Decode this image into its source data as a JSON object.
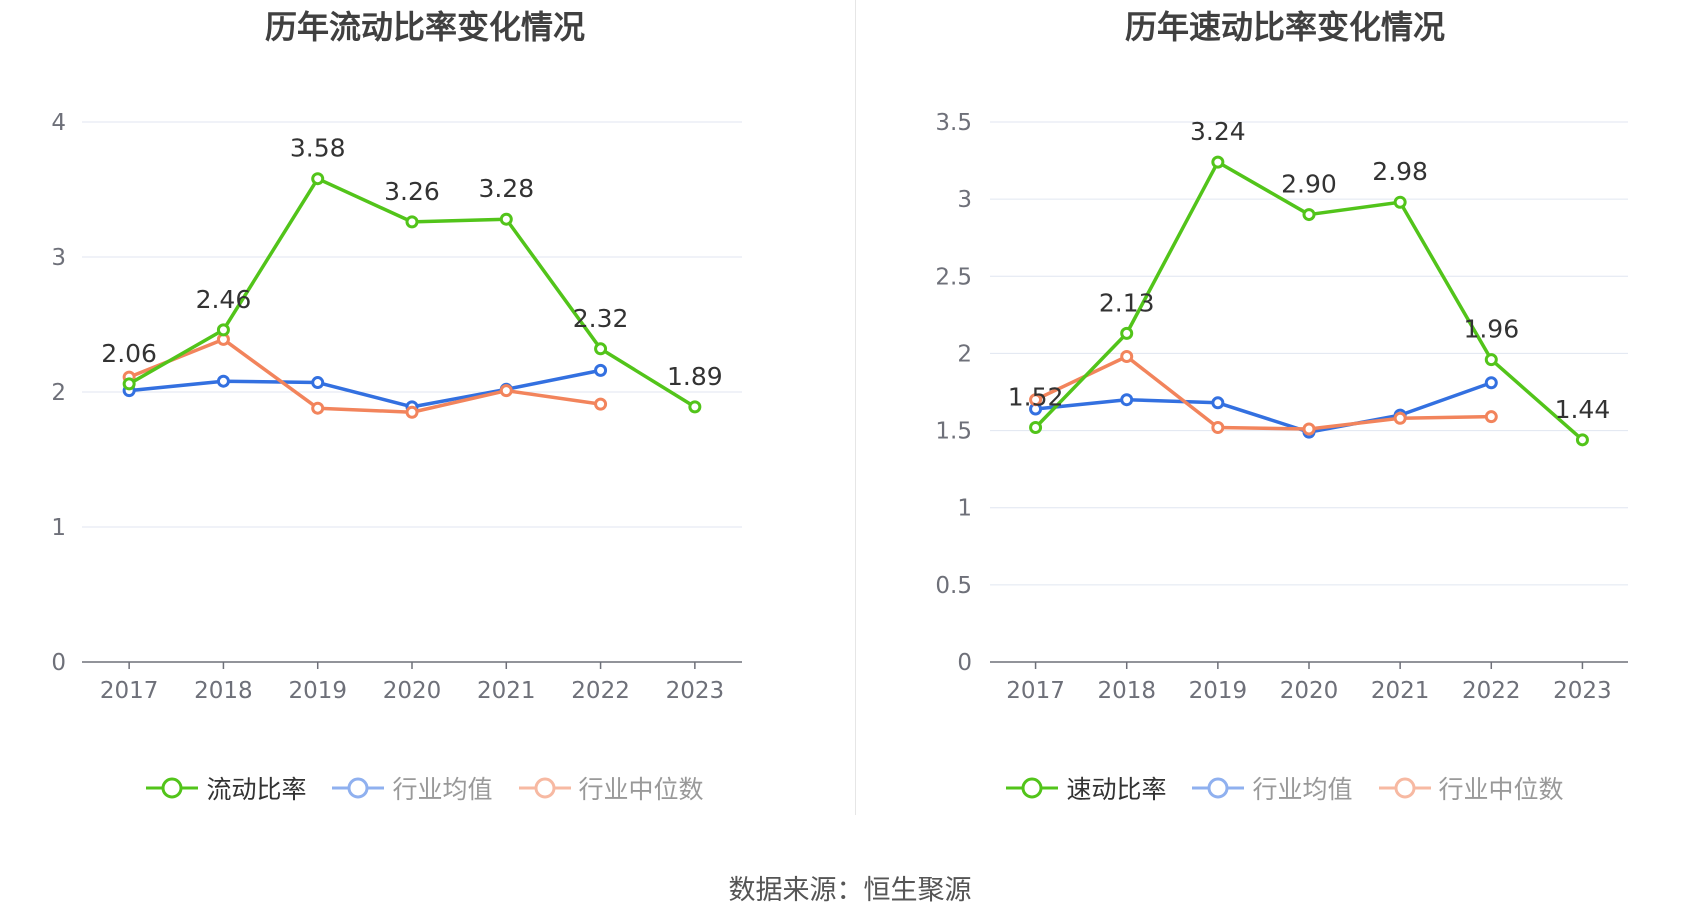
{
  "source_label": "数据来源：恒生聚源",
  "chart_data": [
    {
      "type": "line",
      "title": "历年流动比率变化情况",
      "categories": [
        "2017",
        "2018",
        "2019",
        "2020",
        "2021",
        "2022",
        "2023"
      ],
      "ylim": [
        0,
        4
      ],
      "yticks": [
        "0",
        "1",
        "2",
        "3",
        "4"
      ],
      "grid": true,
      "legend_position": "bottom",
      "series": [
        {
          "name": "流动比率",
          "color": "#52c41a",
          "values": [
            2.06,
            2.46,
            3.58,
            3.26,
            3.28,
            2.32,
            1.89
          ],
          "labels": [
            "2.06",
            "2.46",
            "3.58",
            "3.26",
            "3.28",
            "2.32",
            "1.89"
          ]
        },
        {
          "name": "行业均值",
          "color": "#3370e0",
          "values": [
            2.01,
            2.08,
            2.07,
            1.89,
            2.02,
            2.16,
            null
          ]
        },
        {
          "name": "行业中位数",
          "color": "#f2845c",
          "values": [
            2.11,
            2.39,
            1.88,
            1.85,
            2.01,
            1.91,
            null
          ]
        }
      ]
    },
    {
      "type": "line",
      "title": "历年速动比率变化情况",
      "categories": [
        "2017",
        "2018",
        "2019",
        "2020",
        "2021",
        "2022",
        "2023"
      ],
      "ylim": [
        0,
        3.5
      ],
      "yticks": [
        "0",
        "0.5",
        "1",
        "1.5",
        "2",
        "2.5",
        "3",
        "3.5"
      ],
      "grid": true,
      "legend_position": "bottom",
      "series": [
        {
          "name": "速动比率",
          "color": "#52c41a",
          "values": [
            1.52,
            2.13,
            3.24,
            2.9,
            2.98,
            1.96,
            1.44
          ],
          "labels": [
            "1.52",
            "2.13",
            "3.24",
            "2.90",
            "2.98",
            "1.96",
            "1.44"
          ]
        },
        {
          "name": "行业均值",
          "color": "#3370e0",
          "values": [
            1.64,
            1.7,
            1.68,
            1.49,
            1.6,
            1.81,
            null
          ]
        },
        {
          "name": "行业中位数",
          "color": "#f2845c",
          "values": [
            1.7,
            1.98,
            1.52,
            1.51,
            1.58,
            1.59,
            null
          ]
        }
      ]
    }
  ]
}
